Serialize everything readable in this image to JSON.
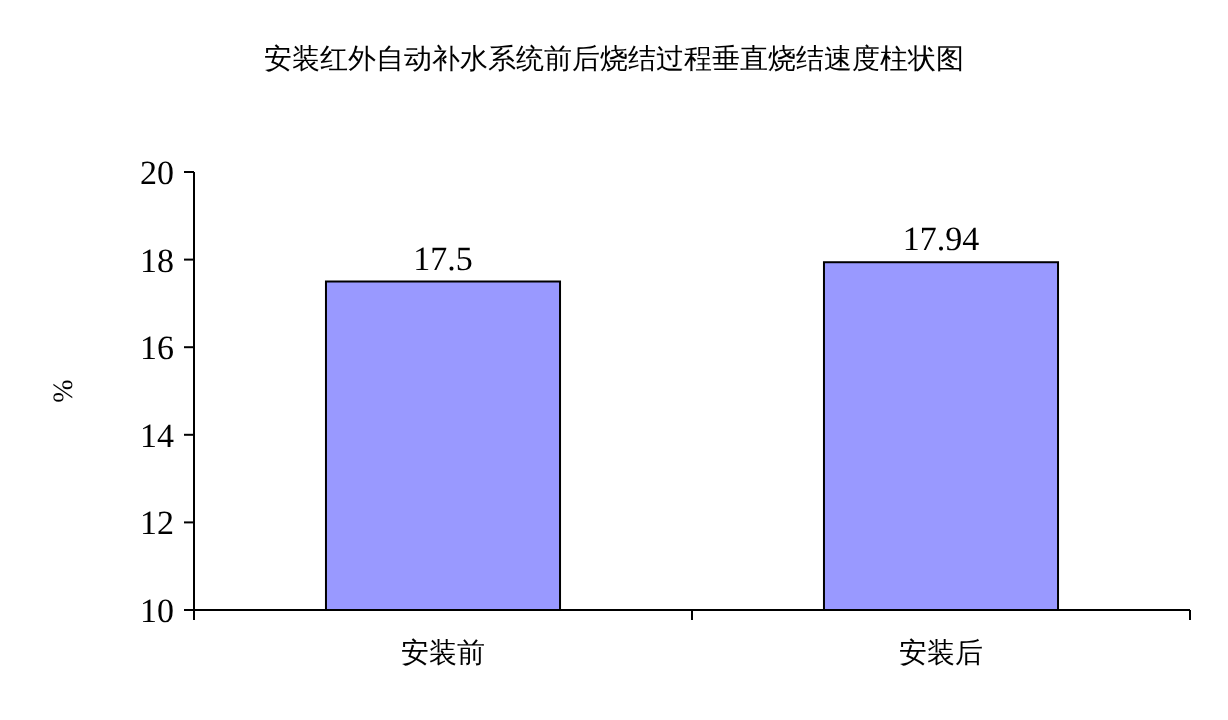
{
  "chart_data": {
    "type": "bar",
    "title": "安装红外自动补水系统前后烧结过程垂直烧结速度柱状图",
    "ylabel": "%",
    "categories": [
      "安装前",
      "安装后"
    ],
    "values": [
      17.5,
      17.94
    ],
    "value_labels": [
      "17.5",
      "17.94"
    ],
    "color": "#9999ff",
    "ylim": [
      10,
      20
    ],
    "yticks": [
      10,
      12,
      14,
      16,
      18,
      20
    ]
  }
}
